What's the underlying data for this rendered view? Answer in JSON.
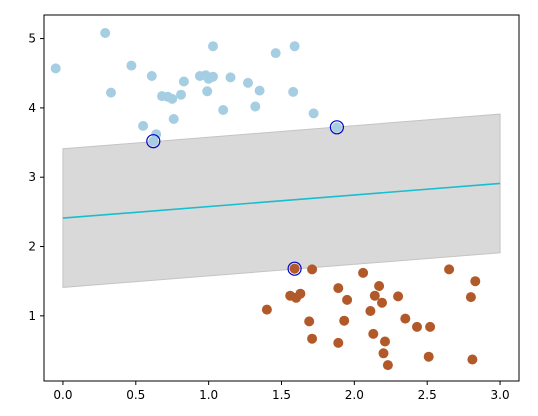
{
  "chart_data": {
    "type": "scatter",
    "title": "",
    "xlabel": "",
    "ylabel": "",
    "xlim": [
      -0.13,
      3.13
    ],
    "ylim": [
      0.06,
      5.34
    ],
    "grid": false,
    "xticks": [
      "0.0",
      "0.5",
      "1.0",
      "1.5",
      "2.0",
      "2.5",
      "3.0"
    ],
    "yticks": [
      "1",
      "2",
      "3",
      "4",
      "5"
    ],
    "xtick_values": [
      0.0,
      0.5,
      1.0,
      1.5,
      2.0,
      2.5,
      3.0
    ],
    "ytick_values": [
      1,
      2,
      3,
      4,
      5
    ],
    "colors": {
      "class_0": "#a6cee3",
      "class_1": "#b15928",
      "decision_line": "#17becf",
      "margin_band": "#d9d9d9",
      "support_vector_edge": "#0000cc"
    },
    "decision_boundary": {
      "x": [
        0.0,
        3.0
      ],
      "y": [
        2.41,
        2.91
      ]
    },
    "margin_band": {
      "x": [
        0.0,
        3.0
      ],
      "lower": [
        1.41,
        1.91
      ],
      "upper": [
        3.41,
        3.91
      ]
    },
    "series": [
      {
        "points": [
          [
            -0.05,
            4.57
          ],
          [
            0.29,
            5.08
          ],
          [
            0.33,
            4.22
          ],
          [
            0.47,
            4.61
          ],
          [
            0.55,
            3.74
          ],
          [
            0.61,
            4.46
          ],
          [
            0.64,
            3.62
          ],
          [
            0.68,
            4.17
          ],
          [
            0.72,
            4.16
          ],
          [
            0.75,
            4.13
          ],
          [
            0.76,
            3.84
          ],
          [
            0.81,
            4.19
          ],
          [
            0.83,
            4.38
          ],
          [
            0.94,
            4.46
          ],
          [
            0.98,
            4.47
          ],
          [
            0.99,
            4.24
          ],
          [
            1.0,
            4.42
          ],
          [
            1.03,
            4.45
          ],
          [
            1.03,
            4.89
          ],
          [
            1.1,
            3.97
          ],
          [
            1.15,
            4.44
          ],
          [
            1.27,
            4.36
          ],
          [
            1.32,
            4.02
          ],
          [
            1.35,
            4.25
          ],
          [
            1.46,
            4.79
          ],
          [
            1.58,
            4.23
          ],
          [
            1.59,
            4.89
          ],
          [
            1.72,
            3.92
          ],
          [
            0.62,
            3.52
          ],
          [
            1.88,
            3.72
          ]
        ]
      },
      {
        "points": [
          [
            1.4,
            1.09
          ],
          [
            1.56,
            1.29
          ],
          [
            1.6,
            1.26
          ],
          [
            1.63,
            1.32
          ],
          [
            1.69,
            0.92
          ],
          [
            1.71,
            0.67
          ],
          [
            1.71,
            1.67
          ],
          [
            1.89,
            1.4
          ],
          [
            1.89,
            0.61
          ],
          [
            1.93,
            0.93
          ],
          [
            1.95,
            1.23
          ],
          [
            2.06,
            1.62
          ],
          [
            2.11,
            1.07
          ],
          [
            2.13,
            0.74
          ],
          [
            2.14,
            1.29
          ],
          [
            2.17,
            1.43
          ],
          [
            2.19,
            1.19
          ],
          [
            2.2,
            0.46
          ],
          [
            2.21,
            0.63
          ],
          [
            2.23,
            0.29
          ],
          [
            2.3,
            1.28
          ],
          [
            2.35,
            0.96
          ],
          [
            2.43,
            0.84
          ],
          [
            2.51,
            0.41
          ],
          [
            2.52,
            0.84
          ],
          [
            2.65,
            1.67
          ],
          [
            2.8,
            1.27
          ],
          [
            2.81,
            0.37
          ],
          [
            2.83,
            1.5
          ],
          [
            1.59,
            1.68
          ]
        ]
      }
    ],
    "support_vectors": [
      [
        0.62,
        3.52
      ],
      [
        1.88,
        3.72
      ],
      [
        1.59,
        1.68
      ]
    ]
  }
}
